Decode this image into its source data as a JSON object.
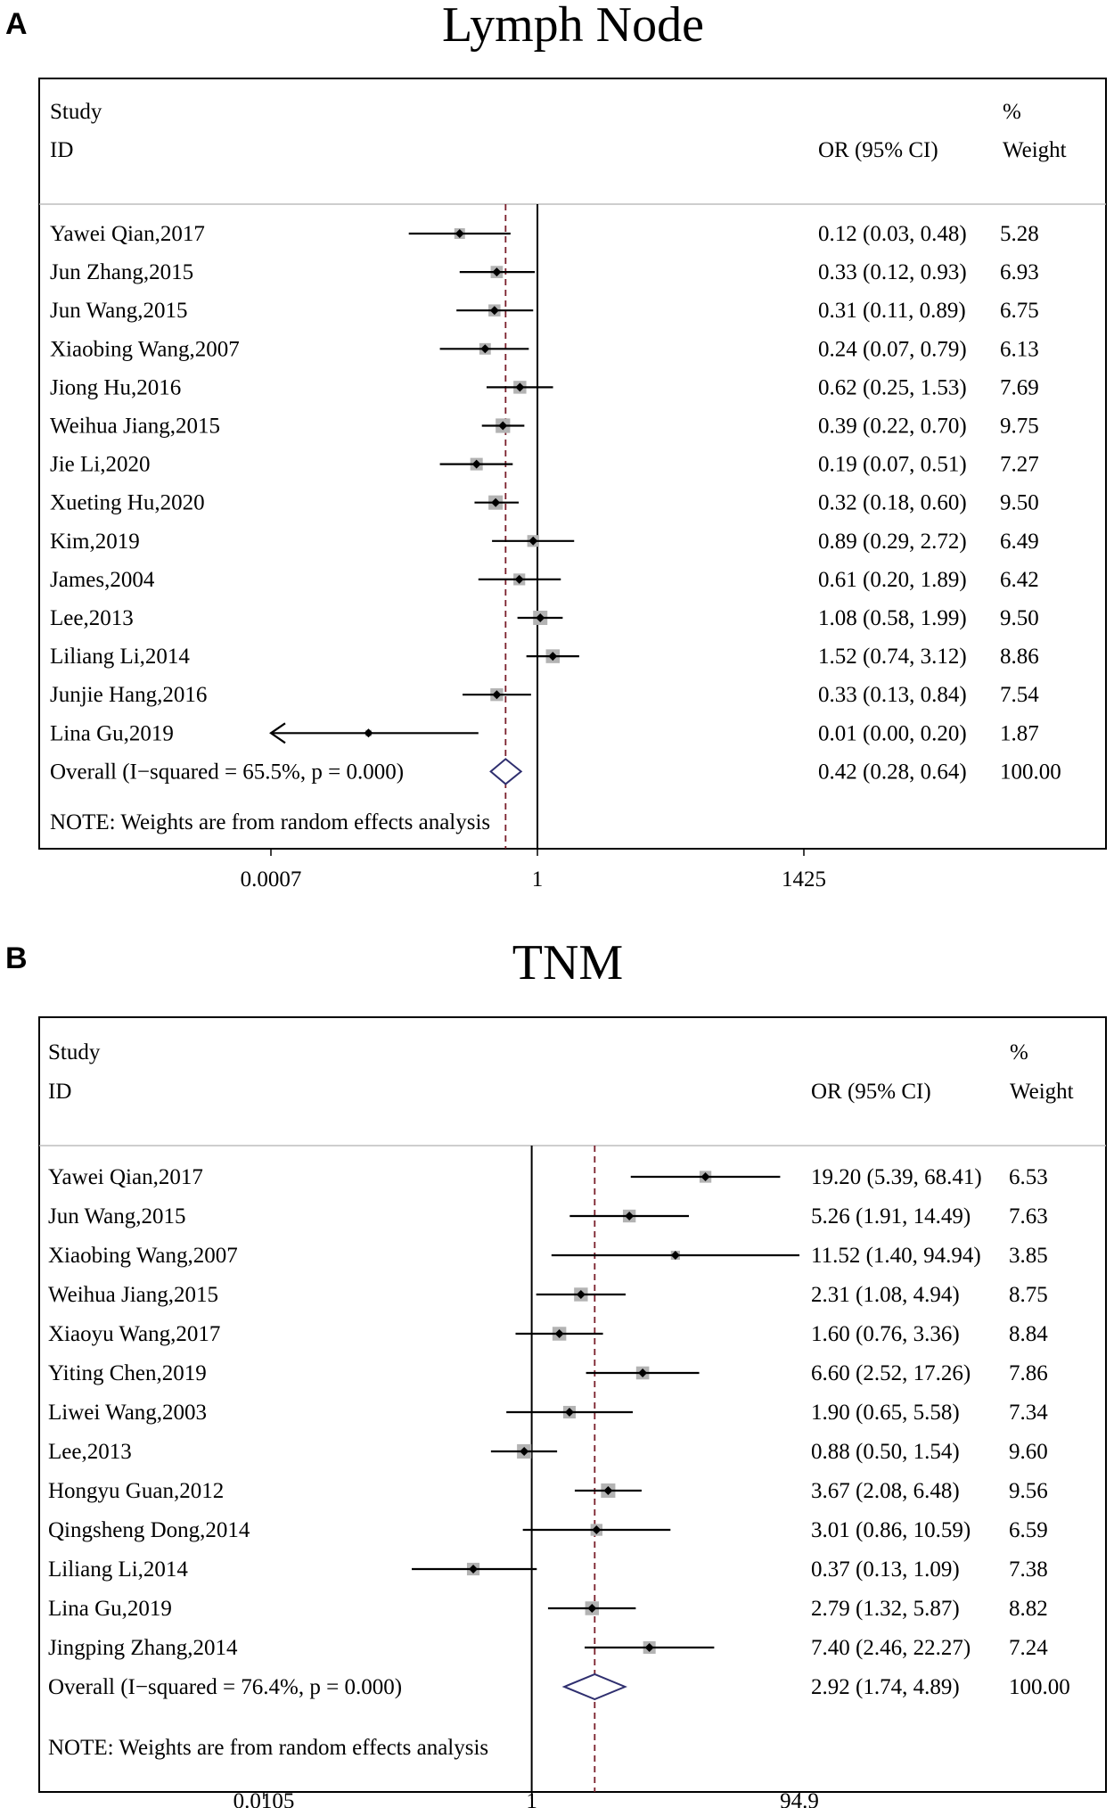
{
  "chart_data": [
    {
      "type": "forest",
      "panel_label": "A",
      "title": "Lymph Node",
      "header": {
        "study": "Study",
        "id": "ID",
        "effect": "OR (95% CI)",
        "pct": "%",
        "weight": "Weight"
      },
      "x_scale": "log",
      "x_ticks": [
        0.0007,
        1,
        1425
      ],
      "x_tick_labels": [
        "0.0007",
        "1",
        "1425"
      ],
      "reference_line": 1,
      "studies": [
        {
          "id": "Yawei Qian,2017",
          "or": 0.12,
          "lo": 0.03,
          "hi": 0.48,
          "ci_text": "0.12 (0.03, 0.48)",
          "weight": "5.28"
        },
        {
          "id": "Jun Zhang,2015",
          "or": 0.33,
          "lo": 0.12,
          "hi": 0.93,
          "ci_text": "0.33 (0.12, 0.93)",
          "weight": "6.93"
        },
        {
          "id": "Jun Wang,2015",
          "or": 0.31,
          "lo": 0.11,
          "hi": 0.89,
          "ci_text": "0.31 (0.11, 0.89)",
          "weight": "6.75"
        },
        {
          "id": "Xiaobing Wang,2007",
          "or": 0.24,
          "lo": 0.07,
          "hi": 0.79,
          "ci_text": "0.24 (0.07, 0.79)",
          "weight": "6.13"
        },
        {
          "id": "Jiong Hu,2016",
          "or": 0.62,
          "lo": 0.25,
          "hi": 1.53,
          "ci_text": "0.62 (0.25, 1.53)",
          "weight": "7.69"
        },
        {
          "id": "Weihua Jiang,2015",
          "or": 0.39,
          "lo": 0.22,
          "hi": 0.7,
          "ci_text": "0.39 (0.22, 0.70)",
          "weight": "9.75"
        },
        {
          "id": "Jie Li,2020",
          "or": 0.19,
          "lo": 0.07,
          "hi": 0.51,
          "ci_text": "0.19 (0.07, 0.51)",
          "weight": "7.27"
        },
        {
          "id": "Xueting Hu,2020",
          "or": 0.32,
          "lo": 0.18,
          "hi": 0.6,
          "ci_text": "0.32 (0.18, 0.60)",
          "weight": "9.50"
        },
        {
          "id": "Kim,2019",
          "or": 0.89,
          "lo": 0.29,
          "hi": 2.72,
          "ci_text": "0.89 (0.29, 2.72)",
          "weight": "6.49"
        },
        {
          "id": "James,2004",
          "or": 0.61,
          "lo": 0.2,
          "hi": 1.89,
          "ci_text": "0.61 (0.20, 1.89)",
          "weight": "6.42"
        },
        {
          "id": "Lee,2013",
          "or": 1.08,
          "lo": 0.58,
          "hi": 1.99,
          "ci_text": "1.08 (0.58, 1.99)",
          "weight": "9.50"
        },
        {
          "id": "Liliang Li,2014",
          "or": 1.52,
          "lo": 0.74,
          "hi": 3.12,
          "ci_text": "1.52 (0.74, 3.12)",
          "weight": "8.86"
        },
        {
          "id": "Junjie Hang,2016",
          "or": 0.33,
          "lo": 0.13,
          "hi": 0.84,
          "ci_text": "0.33 (0.13, 0.84)",
          "weight": "7.54"
        },
        {
          "id": "Lina Gu,2019",
          "or": 0.01,
          "lo": 0.0,
          "hi": 0.2,
          "ci_text": "0.01 (0.00, 0.20)",
          "weight": "1.87"
        }
      ],
      "overall": {
        "label": "Overall  (I−squared = 65.5%, p = 0.000)",
        "or": 0.42,
        "lo": 0.28,
        "hi": 0.64,
        "ci_text": "0.42 (0.28, 0.64)",
        "weight": "100.00"
      },
      "note": "NOTE: Weights are from random effects analysis",
      "colors": {
        "box": "#b3b3b3",
        "diamond": "#2f2f6f",
        "overall_line": "#7a1f2b"
      }
    },
    {
      "type": "forest",
      "panel_label": "B",
      "title": "TNM",
      "header": {
        "study": "Study",
        "id": "ID",
        "effect": "OR (95% CI)",
        "pct": "%",
        "weight": "Weight"
      },
      "x_scale": "log",
      "x_ticks": [
        0.0105,
        1,
        94.9
      ],
      "x_tick_labels": [
        "0.0105",
        "1",
        "94.9"
      ],
      "reference_line": 1,
      "studies": [
        {
          "id": "Yawei Qian,2017",
          "or": 19.2,
          "lo": 5.39,
          "hi": 68.41,
          "ci_text": "19.20 (5.39, 68.41)",
          "weight": "6.53"
        },
        {
          "id": "Jun Wang,2015",
          "or": 5.26,
          "lo": 1.91,
          "hi": 14.49,
          "ci_text": "5.26 (1.91, 14.49)",
          "weight": "7.63"
        },
        {
          "id": "Xiaobing Wang,2007",
          "or": 11.52,
          "lo": 1.4,
          "hi": 94.94,
          "ci_text": "11.52 (1.40, 94.94)",
          "weight": "3.85"
        },
        {
          "id": "Weihua Jiang,2015",
          "or": 2.31,
          "lo": 1.08,
          "hi": 4.94,
          "ci_text": "2.31 (1.08, 4.94)",
          "weight": "8.75"
        },
        {
          "id": "Xiaoyu Wang,2017",
          "or": 1.6,
          "lo": 0.76,
          "hi": 3.36,
          "ci_text": "1.60 (0.76, 3.36)",
          "weight": "8.84"
        },
        {
          "id": "Yiting Chen,2019",
          "or": 6.6,
          "lo": 2.52,
          "hi": 17.26,
          "ci_text": "6.60 (2.52, 17.26)",
          "weight": "7.86"
        },
        {
          "id": "Liwei Wang,2003",
          "or": 1.9,
          "lo": 0.65,
          "hi": 5.58,
          "ci_text": "1.90 (0.65, 5.58)",
          "weight": "7.34"
        },
        {
          "id": "Lee,2013",
          "or": 0.88,
          "lo": 0.5,
          "hi": 1.54,
          "ci_text": "0.88 (0.50, 1.54)",
          "weight": "9.60"
        },
        {
          "id": "Hongyu Guan,2012",
          "or": 3.67,
          "lo": 2.08,
          "hi": 6.48,
          "ci_text": "3.67 (2.08, 6.48)",
          "weight": "9.56"
        },
        {
          "id": "Qingsheng Dong,2014",
          "or": 3.01,
          "lo": 0.86,
          "hi": 10.59,
          "ci_text": "3.01 (0.86, 10.59)",
          "weight": "6.59"
        },
        {
          "id": "Liliang Li,2014",
          "or": 0.37,
          "lo": 0.13,
          "hi": 1.09,
          "ci_text": "0.37 (0.13, 1.09)",
          "weight": "7.38"
        },
        {
          "id": "Lina Gu,2019",
          "or": 2.79,
          "lo": 1.32,
          "hi": 5.87,
          "ci_text": "2.79 (1.32, 5.87)",
          "weight": "8.82"
        },
        {
          "id": "Jingping  Zhang,2014",
          "or": 7.4,
          "lo": 2.46,
          "hi": 22.27,
          "ci_text": "7.40 (2.46, 22.27)",
          "weight": "7.24"
        }
      ],
      "overall": {
        "label": "Overall  (I−squared = 76.4%, p = 0.000)",
        "or": 2.92,
        "lo": 1.74,
        "hi": 4.89,
        "ci_text": "2.92 (1.74, 4.89)",
        "weight": "100.00"
      },
      "note": "NOTE: Weights are from random effects analysis",
      "colors": {
        "box": "#b3b3b3",
        "diamond": "#2f2f6f",
        "overall_line": "#7a1f2b"
      }
    }
  ]
}
